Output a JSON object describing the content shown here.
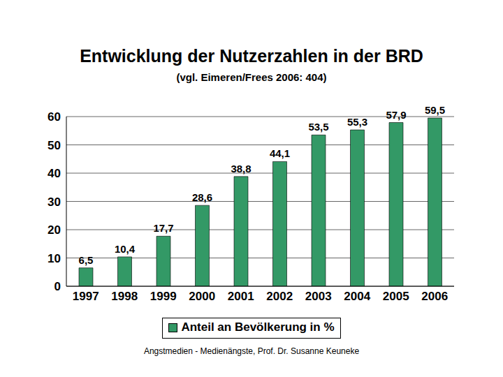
{
  "chart_data": {
    "type": "bar",
    "title": "Entwicklung der Nutzerzahlen in der BRD",
    "subtitle": "(vgl. Eimeren/Frees 2006: 404)",
    "categories": [
      "1997",
      "1998",
      "1999",
      "2000",
      "2001",
      "2002",
      "2003",
      "2004",
      "2005",
      "2006"
    ],
    "series": [
      {
        "name": "Anteil an Bevölkerung in %",
        "color": "#339966",
        "values": [
          6.5,
          10.4,
          17.7,
          28.6,
          38.8,
          44.1,
          53.5,
          55.3,
          57.9,
          59.5
        ],
        "value_labels": [
          "6,5",
          "10,4",
          "17,7",
          "28,6",
          "38,8",
          "44,1",
          "53,5",
          "55,3",
          "57,9",
          "59,5"
        ]
      }
    ],
    "ylim": [
      0,
      60
    ],
    "yticks": [
      0,
      10,
      20,
      30,
      40,
      50,
      60
    ],
    "grid": true,
    "data_labels": true,
    "legend": "bottom",
    "footer": "Angstmedien - Medienängste, Prof. Dr. Susanne Keuneke"
  }
}
